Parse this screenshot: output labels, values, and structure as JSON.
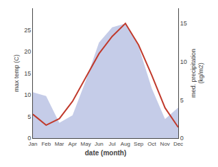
{
  "chart_data": {
    "type": "line",
    "xlabel": "date (month)",
    "ylabel": "max temp (C)",
    "y2label": "med. precipitation\n(kg/m2)",
    "categories": [
      "Jan",
      "Feb",
      "Mar",
      "Apr",
      "May",
      "Jun",
      "Jul",
      "Aug",
      "Sep",
      "Oct",
      "Nov",
      "Dec"
    ],
    "series": [
      {
        "type": "area",
        "axis": "y2",
        "color": "#c5cce8",
        "values": [
          6.0,
          5.5,
          2.0,
          3.0,
          7.5,
          12.5,
          14.5,
          15.0,
          12.0,
          6.5,
          2.5,
          4.0
        ]
      },
      {
        "type": "line",
        "color": "#c0392b",
        "values": [
          5.5,
          3.0,
          4.5,
          8.5,
          14.0,
          19.5,
          23.5,
          26.5,
          21.5,
          14.5,
          7.0,
          2.5
        ]
      }
    ],
    "ylim": [
      0,
      30
    ],
    "yticks": [
      0,
      5,
      10,
      15,
      20,
      25
    ],
    "y2lim": [
      0,
      17
    ],
    "y2ticks": [
      0,
      5,
      10,
      15
    ],
    "grid": false
  }
}
